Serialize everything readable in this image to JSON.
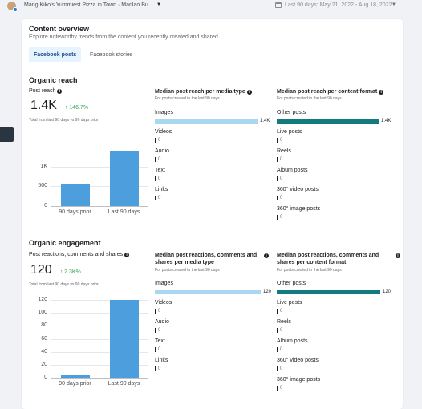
{
  "topbar": {
    "page_name": "Mang Kiko's Yummiest Pizza in Town · Marilao Bu...",
    "date_range": "Last 90 days: May 21, 2022 - Aug 18, 2022"
  },
  "overview": {
    "title": "Content overview",
    "subtitle": "Explore noteworthy trends from the content you recently created and shared.",
    "tabs": [
      {
        "label": "Facebook posts",
        "active": true
      },
      {
        "label": "Facebook stories",
        "active": false
      }
    ]
  },
  "organic_reach": {
    "section_title": "Organic reach",
    "metric_label": "Post reach",
    "value": "1.4K",
    "delta": "146.7%",
    "note": "Total from last 90 days vs 90 days prior",
    "chart_data": {
      "type": "bar",
      "categories": [
        "90 days prior",
        "Last 90 days"
      ],
      "values": [
        567,
        1399
      ],
      "yticks": [
        "1K",
        "500",
        "0"
      ],
      "ylim": [
        0,
        1500
      ]
    },
    "media_type": {
      "title": "Median post reach per media type",
      "subtitle": "For posts created in the last 90 days",
      "rows": [
        {
          "label": "Images",
          "value": "1.4K"
        },
        {
          "label": "Videos",
          "value": "0"
        },
        {
          "label": "Audio",
          "value": "0"
        },
        {
          "label": "Text",
          "value": "0"
        },
        {
          "label": "Links",
          "value": "0"
        }
      ]
    },
    "content_format": {
      "title": "Median post reach per content format",
      "subtitle": "For posts created in the last 90 days",
      "rows": [
        {
          "label": "Other posts",
          "value": "1.4K"
        },
        {
          "label": "Live posts",
          "value": "0"
        },
        {
          "label": "Reels",
          "value": "0"
        },
        {
          "label": "Album posts",
          "value": "0"
        },
        {
          "label": "360° video posts",
          "value": "0"
        },
        {
          "label": "360° image posts",
          "value": "0"
        }
      ]
    }
  },
  "organic_engagement": {
    "section_title": "Organic engagement",
    "metric_label": "Post reactions, comments and shares",
    "value": "120",
    "delta": "2.3K%",
    "note": "Total from last 90 days vs 90 days prior",
    "chart_data": {
      "type": "bar",
      "categories": [
        "90 days prior",
        "Last 90 days"
      ],
      "values": [
        5,
        120
      ],
      "yticks": [
        "120",
        "100",
        "80",
        "60",
        "40",
        "20",
        "0"
      ],
      "ylim": [
        0,
        120
      ]
    },
    "media_type": {
      "title": "Median post reactions, comments and shares per media type",
      "subtitle": "For posts created in the last 90 days",
      "rows": [
        {
          "label": "Images",
          "value": "120"
        },
        {
          "label": "Videos",
          "value": "0"
        },
        {
          "label": "Audio",
          "value": "0"
        },
        {
          "label": "Text",
          "value": "0"
        },
        {
          "label": "Links",
          "value": "0"
        }
      ]
    },
    "content_format": {
      "title": "Median post reactions, comments and shares per content format",
      "subtitle": "For posts created in the last 90 days",
      "rows": [
        {
          "label": "Other posts",
          "value": "120"
        },
        {
          "label": "Live posts",
          "value": "0"
        },
        {
          "label": "Reels",
          "value": "0"
        },
        {
          "label": "Album posts",
          "value": "0"
        },
        {
          "label": "360° video posts",
          "value": "0"
        },
        {
          "label": "360° image posts",
          "value": "0"
        }
      ]
    }
  },
  "colors": {
    "bar": "#4c9fdc",
    "media_bar": "#a8d8f0",
    "format_bar": "#127b7e",
    "positive": "#31a24c"
  }
}
